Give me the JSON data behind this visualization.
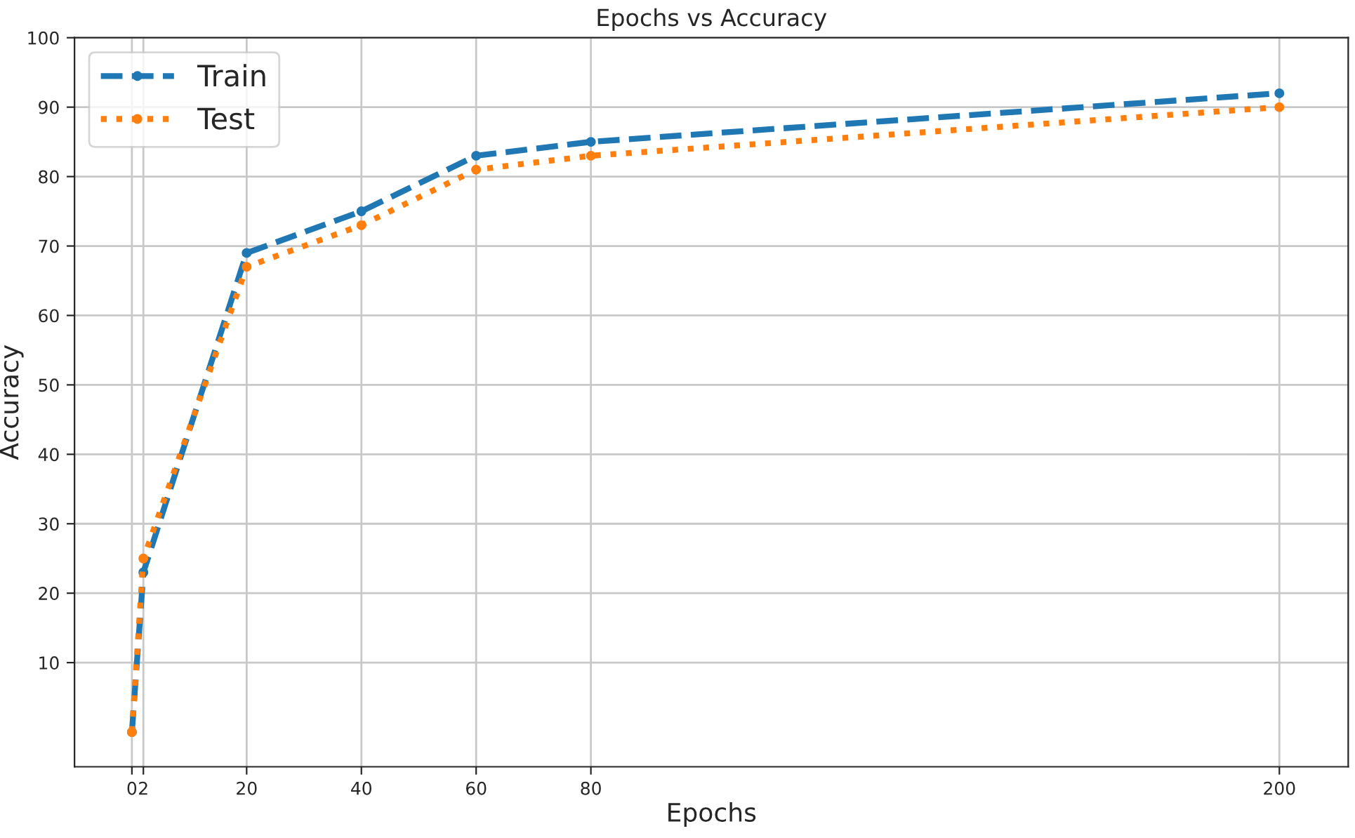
{
  "chart_data": {
    "type": "line",
    "title": "Epochs vs Accuracy",
    "xlabel": "Epochs",
    "ylabel": "Accuracy",
    "x": [
      0,
      2,
      20,
      40,
      60,
      80,
      200
    ],
    "series": [
      {
        "name": "Train",
        "color": "#1f77b4",
        "line_style": "dashed",
        "values": [
          0,
          23,
          69,
          75,
          83,
          85,
          92
        ]
      },
      {
        "name": "Test",
        "color": "#ff7f0e",
        "line_style": "dotted",
        "values": [
          0,
          25,
          67,
          73,
          81,
          83,
          90
        ]
      }
    ],
    "xlim": [
      -10,
      212
    ],
    "xticks": [
      0,
      2,
      20,
      40,
      60,
      80,
      200
    ],
    "ylim": [
      -5,
      100
    ],
    "yticks": [
      10,
      20,
      30,
      40,
      50,
      60,
      70,
      80,
      90,
      100
    ],
    "grid": true,
    "legend": "top left",
    "marker": "circle"
  }
}
